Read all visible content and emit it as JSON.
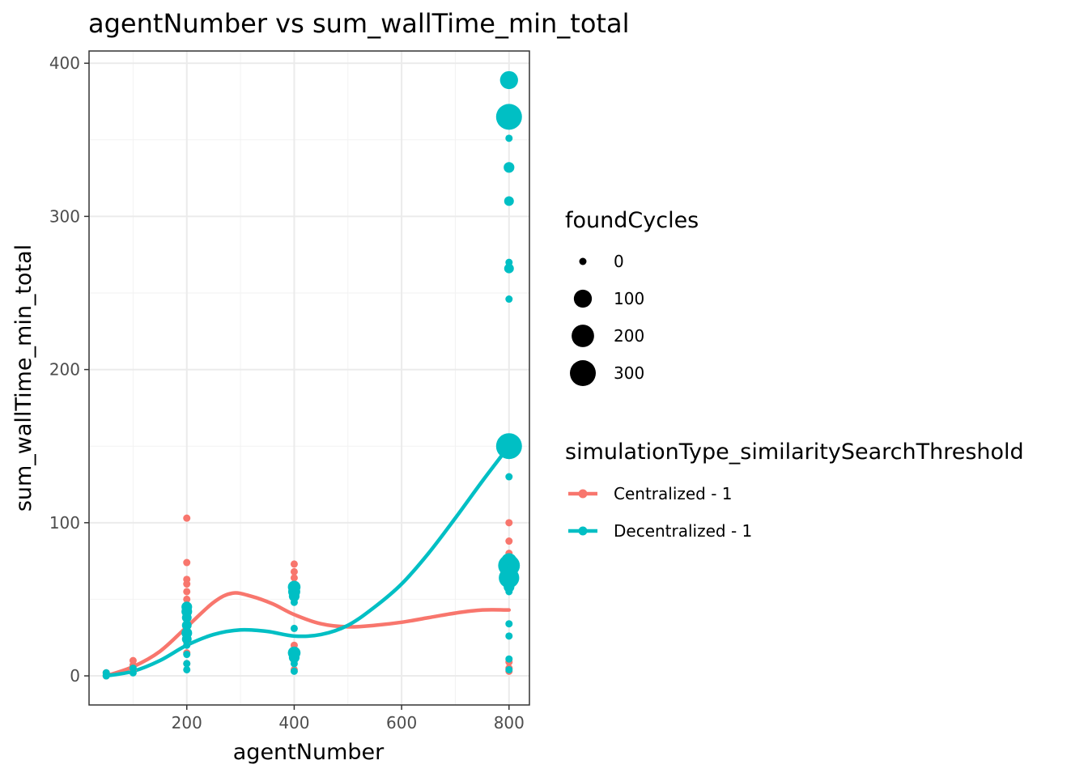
{
  "chart_data": {
    "type": "scatter",
    "title": "agentNumber  vs  sum_wallTime_min_total",
    "xlabel": "agentNumber",
    "ylabel": "sum_wallTime_min_total",
    "xlim": [
      18,
      838
    ],
    "ylim": [
      -19,
      408
    ],
    "x_ticks": [
      200,
      400,
      600,
      800
    ],
    "y_ticks": [
      0,
      100,
      200,
      300,
      400
    ],
    "grid": true,
    "legend_placement": "right",
    "size_legend": {
      "title": "foundCycles",
      "entries": [
        {
          "label": "0",
          "value": 0
        },
        {
          "label": "100",
          "value": 100
        },
        {
          "label": "200",
          "value": 200
        },
        {
          "label": "300",
          "value": 300
        }
      ]
    },
    "color_legend": {
      "title": "simulationType_similaritySearchThreshold",
      "entries": [
        {
          "label": "Centralized - 1",
          "color": "#F8766D"
        },
        {
          "label": "Decentralized - 1",
          "color": "#00BFC4"
        }
      ]
    },
    "series": [
      {
        "name": "Centralized - 1",
        "color": "#F8766D",
        "points": [
          [
            50,
            0,
            0
          ],
          [
            50,
            2,
            0
          ],
          [
            100,
            4,
            0
          ],
          [
            100,
            7,
            0
          ],
          [
            100,
            10,
            0
          ],
          [
            200,
            103,
            0
          ],
          [
            200,
            74,
            0
          ],
          [
            200,
            63,
            0
          ],
          [
            200,
            60,
            0
          ],
          [
            200,
            55,
            0
          ],
          [
            200,
            50,
            0
          ],
          [
            200,
            45,
            0
          ],
          [
            200,
            38,
            0
          ],
          [
            200,
            30,
            0
          ],
          [
            200,
            22,
            0
          ],
          [
            200,
            15,
            0
          ],
          [
            200,
            8,
            0
          ],
          [
            400,
            73,
            0
          ],
          [
            400,
            68,
            0
          ],
          [
            400,
            64,
            0
          ],
          [
            400,
            60,
            0
          ],
          [
            400,
            20,
            0
          ],
          [
            400,
            15,
            0
          ],
          [
            400,
            10,
            0
          ],
          [
            400,
            4,
            0
          ],
          [
            800,
            100,
            0
          ],
          [
            800,
            88,
            0
          ],
          [
            800,
            80,
            0
          ],
          [
            800,
            68,
            0
          ],
          [
            800,
            60,
            0
          ],
          [
            800,
            9,
            0
          ],
          [
            800,
            5,
            0
          ],
          [
            800,
            3,
            0
          ]
        ],
        "trend": [
          [
            50,
            0
          ],
          [
            100,
            6
          ],
          [
            150,
            16
          ],
          [
            200,
            32
          ],
          [
            250,
            48
          ],
          [
            285,
            54
          ],
          [
            320,
            52
          ],
          [
            360,
            47
          ],
          [
            400,
            40
          ],
          [
            450,
            34
          ],
          [
            500,
            32
          ],
          [
            550,
            33
          ],
          [
            600,
            35
          ],
          [
            650,
            38
          ],
          [
            700,
            41
          ],
          [
            750,
            43
          ],
          [
            800,
            43
          ]
        ]
      },
      {
        "name": "Decentralized - 1",
        "color": "#00BFC4",
        "points": [
          [
            50,
            0,
            0
          ],
          [
            50,
            2,
            0
          ],
          [
            100,
            2,
            0
          ],
          [
            100,
            5,
            0
          ],
          [
            200,
            45,
            10
          ],
          [
            200,
            42,
            10
          ],
          [
            200,
            38,
            5
          ],
          [
            200,
            33,
            5
          ],
          [
            200,
            28,
            10
          ],
          [
            200,
            24,
            5
          ],
          [
            200,
            20,
            0
          ],
          [
            200,
            14,
            0
          ],
          [
            200,
            8,
            0
          ],
          [
            200,
            4,
            0
          ],
          [
            400,
            58,
            25
          ],
          [
            400,
            55,
            20
          ],
          [
            400,
            52,
            10
          ],
          [
            400,
            48,
            0
          ],
          [
            400,
            31,
            0
          ],
          [
            400,
            15,
            25
          ],
          [
            400,
            12,
            10
          ],
          [
            400,
            8,
            0
          ],
          [
            400,
            3,
            0
          ],
          [
            800,
            389,
            100
          ],
          [
            800,
            365,
            300
          ],
          [
            800,
            351,
            0
          ],
          [
            800,
            332,
            10
          ],
          [
            800,
            310,
            5
          ],
          [
            800,
            270,
            0
          ],
          [
            800,
            266,
            5
          ],
          [
            800,
            246,
            0
          ],
          [
            800,
            150,
            300
          ],
          [
            800,
            130,
            0
          ],
          [
            800,
            75,
            60
          ],
          [
            800,
            72,
            180
          ],
          [
            800,
            68,
            40
          ],
          [
            800,
            64,
            150
          ],
          [
            800,
            58,
            10
          ],
          [
            800,
            55,
            0
          ],
          [
            800,
            34,
            0
          ],
          [
            800,
            26,
            0
          ],
          [
            800,
            11,
            0
          ],
          [
            800,
            4,
            0
          ]
        ],
        "trend": [
          [
            50,
            0
          ],
          [
            100,
            3
          ],
          [
            150,
            10
          ],
          [
            200,
            20
          ],
          [
            250,
            27
          ],
          [
            300,
            30
          ],
          [
            350,
            29
          ],
          [
            400,
            26
          ],
          [
            450,
            27
          ],
          [
            500,
            33
          ],
          [
            550,
            45
          ],
          [
            600,
            60
          ],
          [
            650,
            80
          ],
          [
            700,
            103
          ],
          [
            750,
            127
          ],
          [
            800,
            150
          ]
        ]
      }
    ]
  }
}
